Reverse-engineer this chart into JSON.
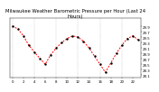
{
  "title": "Milwaukee Weather Barometric Pressure per Hour (Last 24 Hours)",
  "line_color": "#ff0000",
  "marker_color": "#000000",
  "background_color": "#ffffff",
  "grid_color": "#888888",
  "hours": [
    0,
    1,
    2,
    3,
    4,
    5,
    6,
    7,
    8,
    9,
    10,
    11,
    12,
    13,
    14,
    15,
    16,
    17,
    18,
    19,
    20,
    21,
    22,
    23
  ],
  "pressure": [
    29.92,
    29.8,
    29.55,
    29.2,
    28.95,
    28.72,
    28.5,
    28.85,
    29.1,
    29.3,
    29.45,
    29.55,
    29.5,
    29.35,
    29.1,
    28.8,
    28.5,
    28.2,
    28.55,
    28.9,
    29.2,
    29.45,
    29.55,
    29.4
  ],
  "ylim_min": 28.0,
  "ylim_max": 30.2,
  "ytick_labels": [
    "29.9",
    "29.7",
    "29.5",
    "29.3",
    "29.1",
    "28.9",
    "28.7",
    "28.5",
    "28.3",
    "28.1"
  ],
  "ytick_vals": [
    29.9,
    29.7,
    29.5,
    29.3,
    29.1,
    28.9,
    28.7,
    28.5,
    28.3,
    28.1
  ],
  "xtick_positions": [
    0,
    2,
    4,
    6,
    8,
    10,
    12,
    14,
    16,
    18,
    20,
    22
  ],
  "xtick_labels": [
    "0",
    "2",
    "4",
    "6",
    "8",
    "10",
    "12",
    "14",
    "16",
    "18",
    "20",
    "22"
  ],
  "title_fontsize": 3.8,
  "tick_fontsize": 2.8,
  "linewidth": 0.7,
  "markersize": 1.5,
  "grid_linewidth": 0.3
}
